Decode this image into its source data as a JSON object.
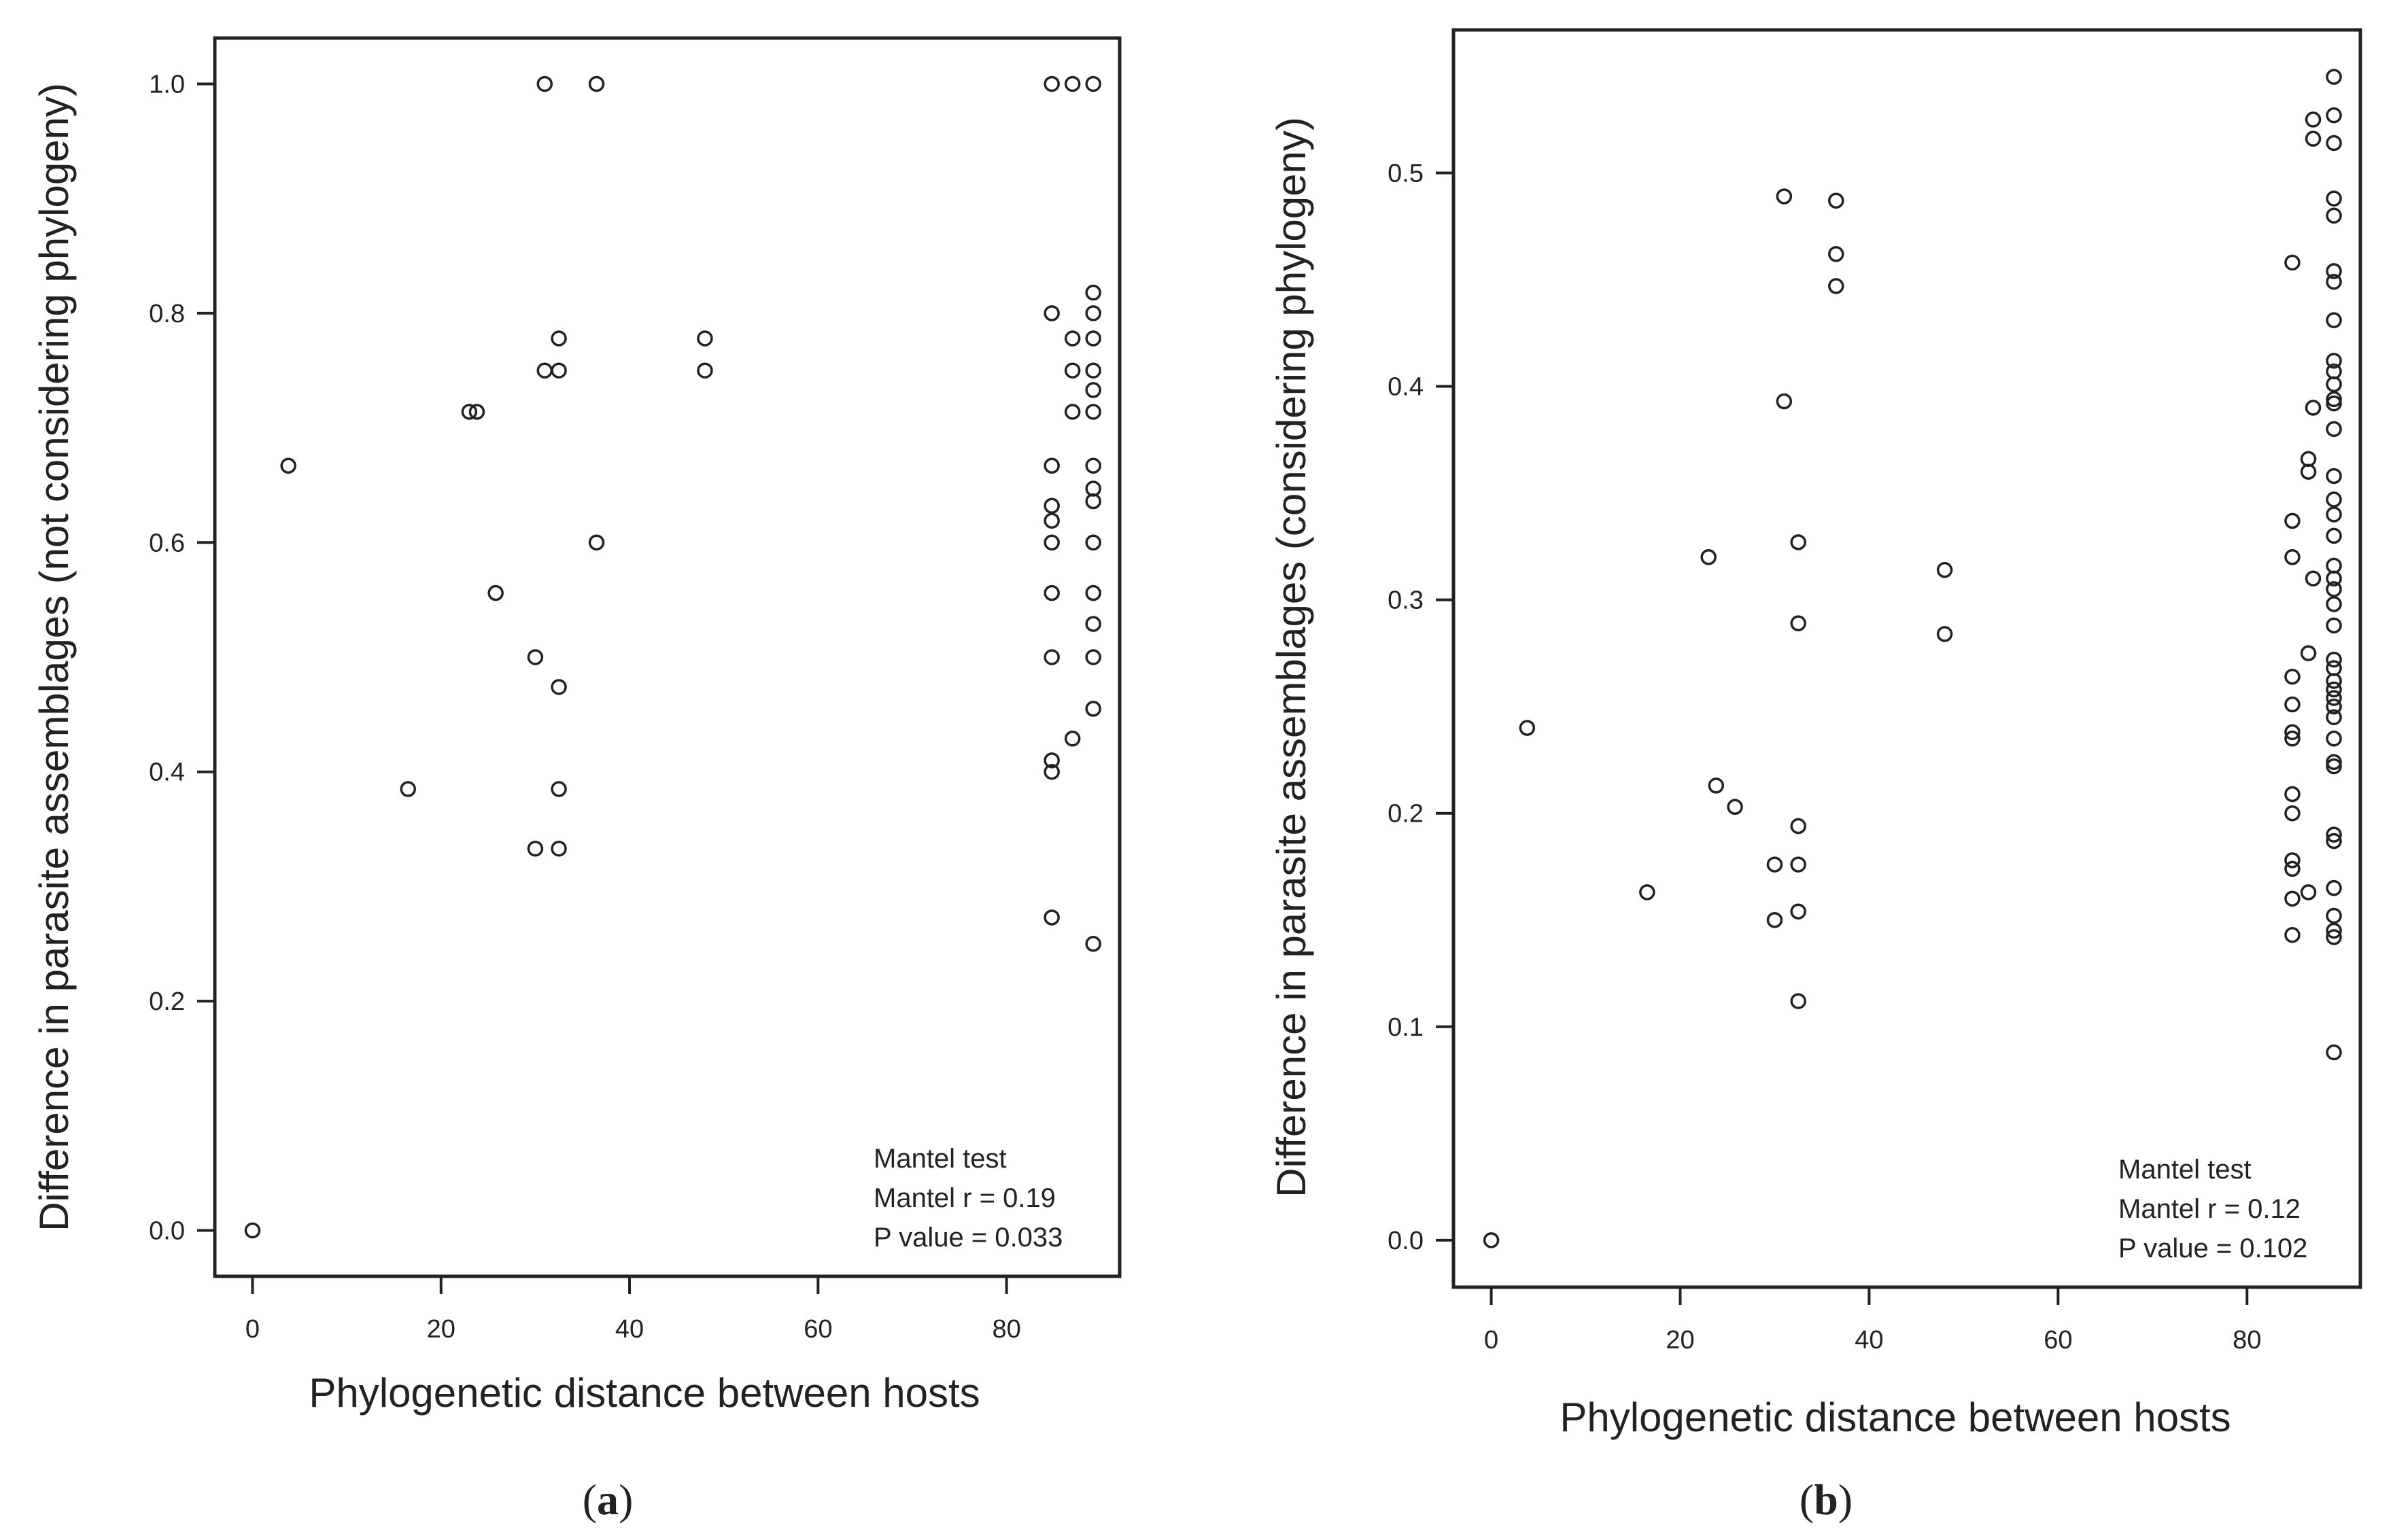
{
  "chart_data": [
    {
      "type": "scatter",
      "panel_label": "a",
      "xlabel": "Phylogenetic distance between hosts",
      "ylabel": "Difference in parasite assemblages (not considering phylogeny)",
      "xlim": [
        -4,
        92
      ],
      "ylim": [
        -0.04,
        1.04
      ],
      "x_ticks": [
        0,
        20,
        40,
        60,
        80
      ],
      "y_ticks": [
        0.0,
        0.2,
        0.4,
        0.6,
        0.8,
        1.0
      ],
      "x_tick_labels": [
        "0",
        "20",
        "40",
        "60",
        "80"
      ],
      "y_tick_labels": [
        "0.0",
        "0.2",
        "0.4",
        "0.6",
        "0.8",
        "1.0"
      ],
      "grid": false,
      "annotation": [
        "Mantel test",
        "Mantel r = 0.19",
        "P value = 0.033"
      ],
      "points": [
        [
          0,
          0.0
        ],
        [
          3.8,
          0.667
        ],
        [
          16.5,
          0.385
        ],
        [
          23,
          0.714
        ],
        [
          23.8,
          0.714
        ],
        [
          25.8,
          0.556
        ],
        [
          30,
          0.5
        ],
        [
          30,
          0.333
        ],
        [
          31,
          1.0
        ],
        [
          31,
          0.75
        ],
        [
          32.5,
          0.75
        ],
        [
          32.5,
          0.778
        ],
        [
          32.5,
          0.474
        ],
        [
          32.5,
          0.385
        ],
        [
          32.5,
          0.333
        ],
        [
          36.5,
          1.0
        ],
        [
          36.5,
          0.6
        ],
        [
          48,
          0.778
        ],
        [
          48,
          0.75
        ],
        [
          84.8,
          1.0
        ],
        [
          84.8,
          0.8
        ],
        [
          84.8,
          0.667
        ],
        [
          84.8,
          0.632
        ],
        [
          84.8,
          0.619
        ],
        [
          84.8,
          0.6
        ],
        [
          84.8,
          0.556
        ],
        [
          84.8,
          0.5
        ],
        [
          84.8,
          0.41
        ],
        [
          84.8,
          0.4
        ],
        [
          84.8,
          0.273
        ],
        [
          87,
          1.0
        ],
        [
          87,
          0.778
        ],
        [
          87,
          0.75
        ],
        [
          87,
          0.714
        ],
        [
          87,
          0.429
        ],
        [
          89.2,
          1.0
        ],
        [
          89.2,
          0.818
        ],
        [
          89.2,
          0.8
        ],
        [
          89.2,
          0.778
        ],
        [
          89.2,
          0.75
        ],
        [
          89.2,
          0.733
        ],
        [
          89.2,
          0.714
        ],
        [
          89.2,
          0.667
        ],
        [
          89.2,
          0.647
        ],
        [
          89.2,
          0.636
        ],
        [
          89.2,
          0.6
        ],
        [
          89.2,
          0.556
        ],
        [
          89.2,
          0.529
        ],
        [
          89.2,
          0.5
        ],
        [
          89.2,
          0.455
        ],
        [
          89.2,
          0.25
        ]
      ]
    },
    {
      "type": "scatter",
      "panel_label": "b",
      "xlabel": "Phylogenetic distance between hosts",
      "ylabel": "Difference in parasite assemblages (considering phylogeny)",
      "xlim": [
        -4,
        92
      ],
      "ylim": [
        -0.022,
        0.567
      ],
      "x_ticks": [
        0,
        20,
        40,
        60,
        80
      ],
      "y_ticks": [
        0.0,
        0.1,
        0.2,
        0.3,
        0.4,
        0.5
      ],
      "x_tick_labels": [
        "0",
        "20",
        "40",
        "60",
        "80"
      ],
      "y_tick_labels": [
        "0.0",
        "0.1",
        "0.2",
        "0.3",
        "0.4",
        "0.5"
      ],
      "grid": false,
      "annotation": [
        "Mantel test",
        "Mantel r = 0.12",
        "P value = 0.102"
      ],
      "points": [
        [
          0,
          0.0
        ],
        [
          3.8,
          0.24
        ],
        [
          16.5,
          0.163
        ],
        [
          23,
          0.32
        ],
        [
          23.8,
          0.213
        ],
        [
          25.8,
          0.203
        ],
        [
          30,
          0.176
        ],
        [
          30,
          0.15
        ],
        [
          31,
          0.489
        ],
        [
          31,
          0.393
        ],
        [
          32.5,
          0.327
        ],
        [
          32.5,
          0.289
        ],
        [
          32.5,
          0.194
        ],
        [
          32.5,
          0.176
        ],
        [
          32.5,
          0.154
        ],
        [
          32.5,
          0.112
        ],
        [
          36.5,
          0.487
        ],
        [
          36.5,
          0.462
        ],
        [
          36.5,
          0.447
        ],
        [
          48,
          0.314
        ],
        [
          48,
          0.284
        ],
        [
          84.8,
          0.458
        ],
        [
          84.8,
          0.337
        ],
        [
          84.8,
          0.32
        ],
        [
          84.8,
          0.264
        ],
        [
          84.8,
          0.251
        ],
        [
          84.8,
          0.238
        ],
        [
          84.8,
          0.235
        ],
        [
          84.8,
          0.209
        ],
        [
          84.8,
          0.2
        ],
        [
          84.8,
          0.178
        ],
        [
          84.8,
          0.174
        ],
        [
          84.8,
          0.16
        ],
        [
          84.8,
          0.143
        ],
        [
          86.5,
          0.366
        ],
        [
          86.5,
          0.36
        ],
        [
          86.5,
          0.275
        ],
        [
          86.5,
          0.163
        ],
        [
          87,
          0.525
        ],
        [
          87,
          0.516
        ],
        [
          87,
          0.39
        ],
        [
          87,
          0.31
        ],
        [
          89.2,
          0.545
        ],
        [
          89.2,
          0.527
        ],
        [
          89.2,
          0.514
        ],
        [
          89.2,
          0.488
        ],
        [
          89.2,
          0.48
        ],
        [
          89.2,
          0.454
        ],
        [
          89.2,
          0.449
        ],
        [
          89.2,
          0.431
        ],
        [
          89.2,
          0.412
        ],
        [
          89.2,
          0.407
        ],
        [
          89.2,
          0.401
        ],
        [
          89.2,
          0.394
        ],
        [
          89.2,
          0.392
        ],
        [
          89.2,
          0.38
        ],
        [
          89.2,
          0.358
        ],
        [
          89.2,
          0.347
        ],
        [
          89.2,
          0.34
        ],
        [
          89.2,
          0.33
        ],
        [
          89.2,
          0.316
        ],
        [
          89.2,
          0.31
        ],
        [
          89.2,
          0.305
        ],
        [
          89.2,
          0.298
        ],
        [
          89.2,
          0.288
        ],
        [
          89.2,
          0.272
        ],
        [
          89.2,
          0.268
        ],
        [
          89.2,
          0.262
        ],
        [
          89.2,
          0.258
        ],
        [
          89.2,
          0.254
        ],
        [
          89.2,
          0.25
        ],
        [
          89.2,
          0.245
        ],
        [
          89.2,
          0.235
        ],
        [
          89.2,
          0.224
        ],
        [
          89.2,
          0.222
        ],
        [
          89.2,
          0.19
        ],
        [
          89.2,
          0.187
        ],
        [
          89.2,
          0.165
        ],
        [
          89.2,
          0.152
        ],
        [
          89.2,
          0.145
        ],
        [
          89.2,
          0.142
        ],
        [
          89.2,
          0.088
        ]
      ]
    }
  ]
}
